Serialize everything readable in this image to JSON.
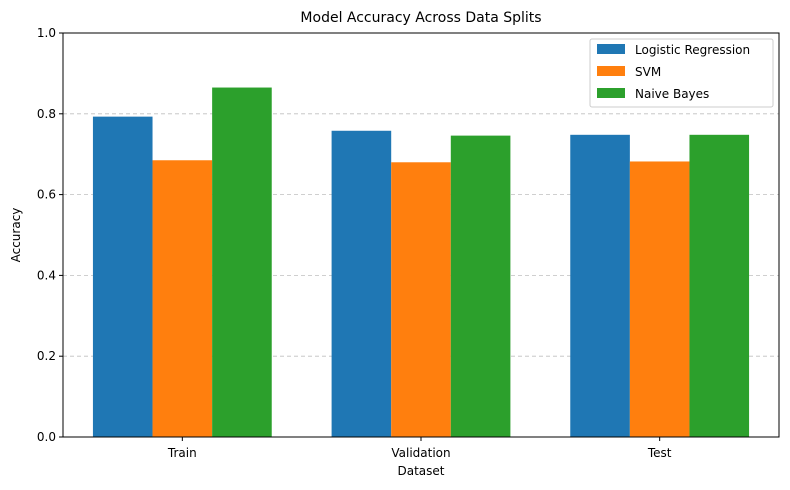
{
  "chart_data": {
    "type": "bar",
    "title": "Model Accuracy Across Data Splits",
    "xlabel": "Dataset",
    "ylabel": "Accuracy",
    "categories": [
      "Train",
      "Validation",
      "Test"
    ],
    "series": [
      {
        "name": "Logistic Regression",
        "values": [
          0.793,
          0.758,
          0.748
        ],
        "color": "#1f77b4"
      },
      {
        "name": "SVM",
        "values": [
          0.685,
          0.68,
          0.682
        ],
        "color": "#ff7f0e"
      },
      {
        "name": "Naive Bayes",
        "values": [
          0.865,
          0.746,
          0.748
        ],
        "color": "#2ca02c"
      }
    ],
    "ylim": [
      0,
      1.0
    ],
    "yticks": [
      "0.0",
      "0.2",
      "0.4",
      "0.6",
      "0.8",
      "1.0"
    ],
    "grid": "y-dashed",
    "legend_position": "top-right"
  }
}
